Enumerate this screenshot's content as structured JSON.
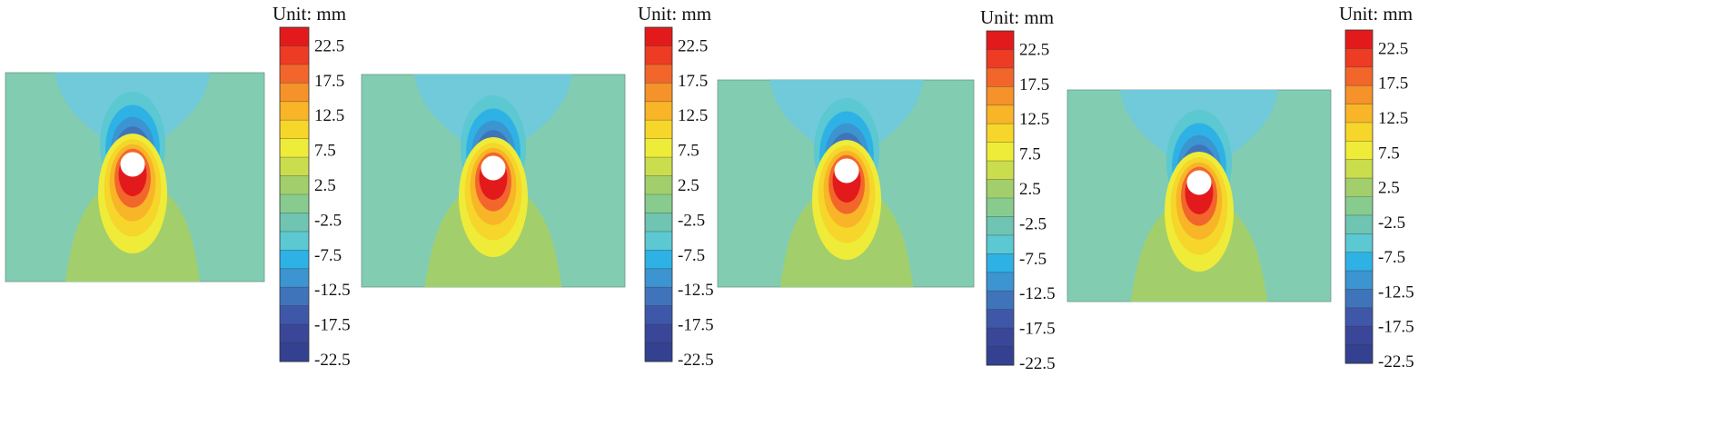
{
  "unit_label": "Unit: mm",
  "colorbar": {
    "tick_labels": [
      "22.5",
      "17.5",
      "12.5",
      "7.5",
      "2.5",
      "-2.5",
      "-7.5",
      "-12.5",
      "-17.5",
      "-22.5"
    ],
    "bands": [
      "#e31a1c",
      "#ed3b24",
      "#f2662b",
      "#f5922a",
      "#f8b528",
      "#f6d62a",
      "#eeec39",
      "#cadd4d",
      "#a2cf6c",
      "#87cc8e",
      "#6fc4b2",
      "#5bc8d2",
      "#2eb2e6",
      "#3c94d1",
      "#3f74bb",
      "#3e57a9",
      "#3a4698",
      "#334190"
    ]
  },
  "field_colors": {
    "background": "#82ccb1",
    "lower_lobe": "#a2cf6c",
    "upper_lobe": "#70cad9",
    "hole": "#ffffff"
  },
  "panels": [
    {
      "id": "panel-1"
    },
    {
      "id": "panel-2"
    },
    {
      "id": "panel-3"
    },
    {
      "id": "panel-4"
    }
  ]
}
